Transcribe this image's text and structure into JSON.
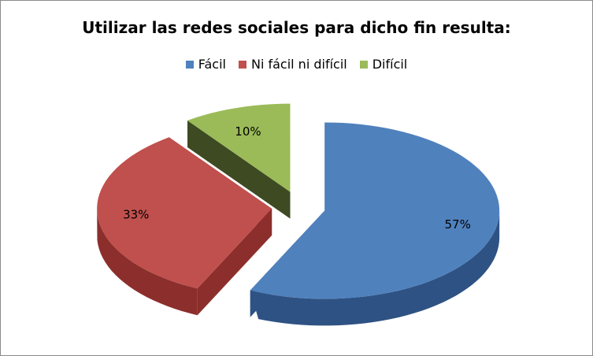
{
  "chart_data": {
    "type": "pie",
    "style": "3d-exploded",
    "title": "Utilizar las redes sociales para dicho fin resulta:",
    "legend_position": "top",
    "categories": [
      "Fácil",
      "Ni fácil ni difícil",
      "Difícil"
    ],
    "values": [
      57,
      33,
      10
    ],
    "labels": [
      "57%",
      "33%",
      "10%"
    ],
    "colors": [
      "#4F81BD",
      "#C0504D",
      "#9BBB59"
    ],
    "side_colors": [
      "#2E5283",
      "#8C2F2C",
      "#3E4A22"
    ]
  }
}
